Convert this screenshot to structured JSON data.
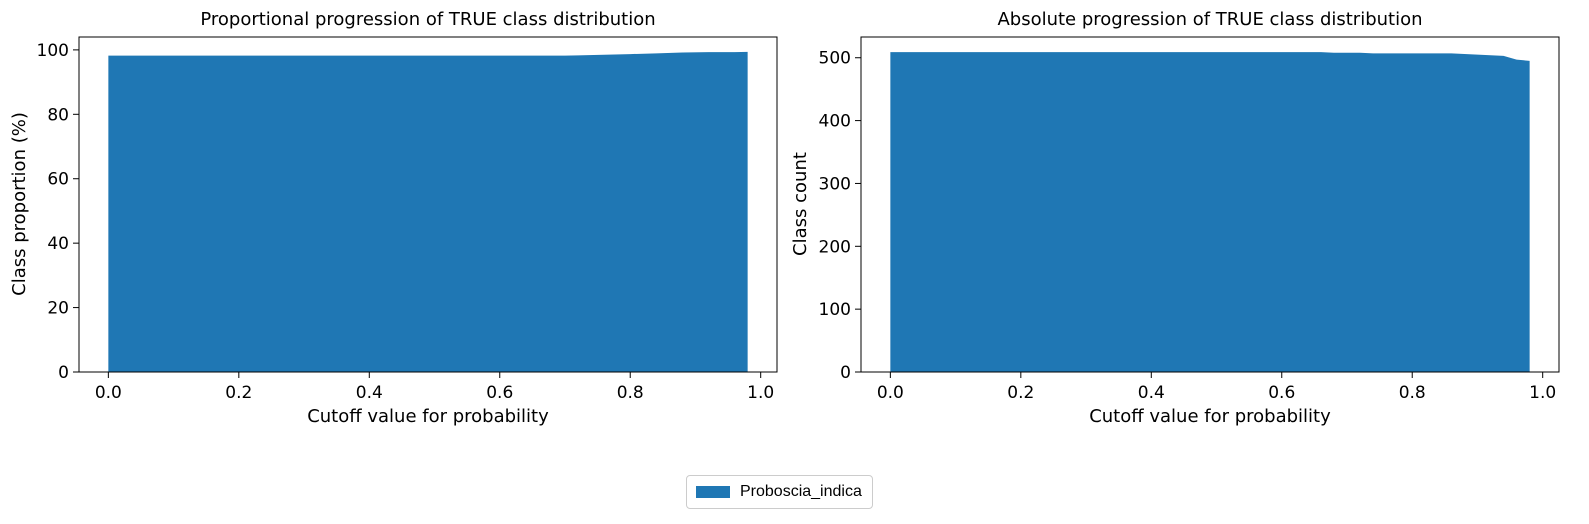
{
  "legend": {
    "items": [
      {
        "label": "Proboscia_indica",
        "color": "#1f77b4"
      }
    ],
    "placement": "bottom-center"
  },
  "chart_data": [
    {
      "type": "area",
      "title": "Proportional progression of TRUE class distribution",
      "xlabel": "Cutoff value for probability",
      "ylabel": "Class proportion (%)",
      "xlim": [
        -0.045,
        1.025
      ],
      "ylim": [
        0,
        104
      ],
      "xticks": [
        0.0,
        0.2,
        0.4,
        0.6,
        0.8,
        1.0
      ],
      "xtick_labels": [
        "0.0",
        "0.2",
        "0.4",
        "0.6",
        "0.8",
        "1.0"
      ],
      "yticks": [
        0,
        20,
        40,
        60,
        80,
        100
      ],
      "ytick_labels": [
        "0",
        "20",
        "40",
        "60",
        "80",
        "100"
      ],
      "grid": false,
      "series": [
        {
          "name": "Proboscia_indica",
          "color": "#1f77b4",
          "x": [
            0.0,
            0.1,
            0.2,
            0.3,
            0.4,
            0.5,
            0.6,
            0.7,
            0.72,
            0.76,
            0.8,
            0.84,
            0.88,
            0.92,
            0.96,
            0.98
          ],
          "y": [
            98.2,
            98.2,
            98.2,
            98.2,
            98.2,
            98.2,
            98.2,
            98.2,
            98.3,
            98.5,
            98.7,
            98.9,
            99.2,
            99.3,
            99.3,
            99.4
          ]
        }
      ]
    },
    {
      "type": "area",
      "title": "Absolute progression of TRUE class distribution",
      "xlabel": "Cutoff value for probability",
      "ylabel": "Class count",
      "xlim": [
        -0.045,
        1.025
      ],
      "ylim": [
        0,
        533
      ],
      "xticks": [
        0.0,
        0.2,
        0.4,
        0.6,
        0.8,
        1.0
      ],
      "xtick_labels": [
        "0.0",
        "0.2",
        "0.4",
        "0.6",
        "0.8",
        "1.0"
      ],
      "yticks": [
        0,
        100,
        200,
        300,
        400,
        500
      ],
      "ytick_labels": [
        "0",
        "100",
        "200",
        "300",
        "400",
        "500"
      ],
      "grid": false,
      "series": [
        {
          "name": "Proboscia_indica",
          "color": "#1f77b4",
          "x": [
            0.0,
            0.1,
            0.2,
            0.3,
            0.4,
            0.5,
            0.6,
            0.66,
            0.68,
            0.72,
            0.74,
            0.8,
            0.86,
            0.9,
            0.94,
            0.96,
            0.98
          ],
          "y": [
            509,
            509,
            509,
            509,
            509,
            509,
            509,
            509,
            508,
            508,
            507,
            507,
            507,
            505,
            503,
            497,
            495
          ]
        }
      ]
    }
  ]
}
